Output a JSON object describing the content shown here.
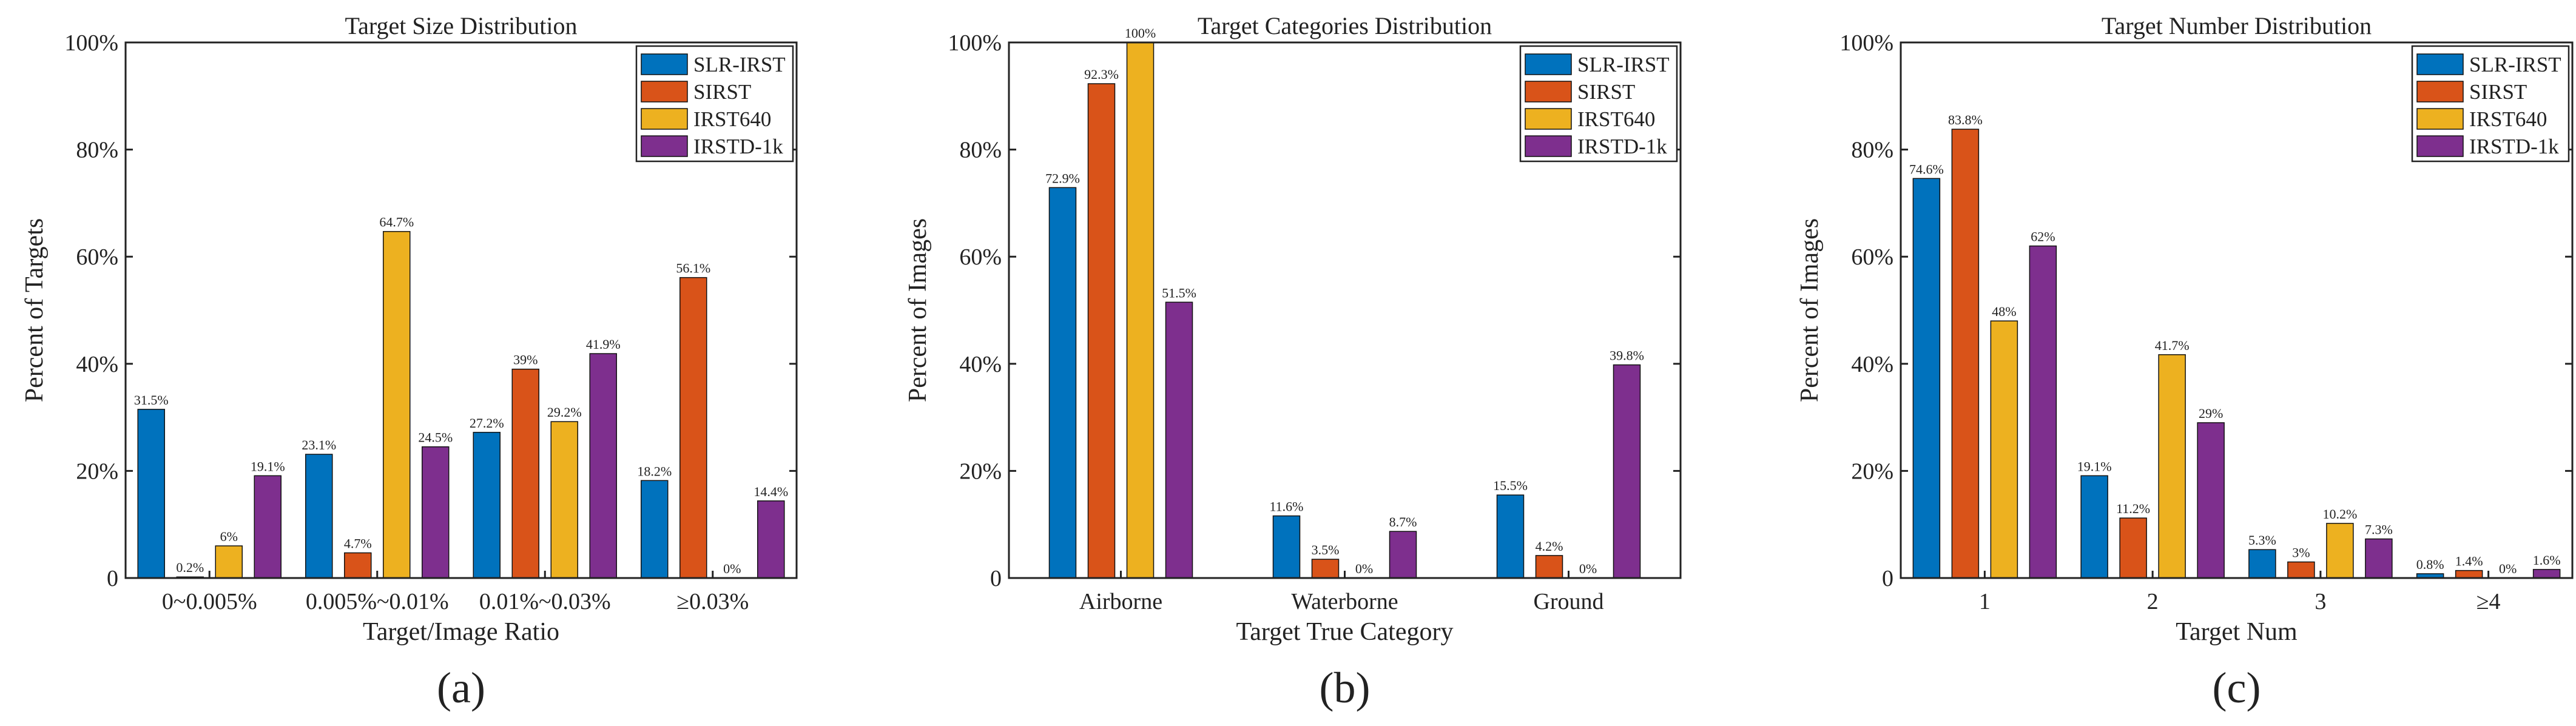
{
  "series_colors": [
    "#0072BD",
    "#D95319",
    "#EDB120",
    "#7E2F8E"
  ],
  "chart_data": [
    {
      "type": "bar",
      "panel_label": "(a)",
      "title": "Target Size Distribution",
      "xlabel": "Target/Image Ratio",
      "ylabel": "Percent of Targets",
      "ylim": [
        0,
        100
      ],
      "yticks": [
        "0",
        "20%",
        "40%",
        "60%",
        "80%",
        "100%"
      ],
      "grid": false,
      "legend_position": "top-right",
      "categories": [
        "0~0.005%",
        "0.005%~0.01%",
        "0.01%~0.03%",
        "≥0.03%"
      ],
      "series": [
        {
          "name": "SLR-IRST",
          "values": [
            31.5,
            23.1,
            27.2,
            18.2
          ],
          "labels": [
            "31.5%",
            "23.1%",
            "27.2%",
            "18.2%"
          ]
        },
        {
          "name": "SIRST",
          "values": [
            0.2,
            4.7,
            39,
            56.1
          ],
          "labels": [
            "0.2%",
            "4.7%",
            "39%",
            "56.1%"
          ]
        },
        {
          "name": "IRST640",
          "values": [
            6,
            64.7,
            29.2,
            0
          ],
          "labels": [
            "6%",
            "64.7%",
            "29.2%",
            "0%"
          ]
        },
        {
          "name": "IRSTD-1k",
          "values": [
            19.1,
            24.5,
            41.9,
            14.4
          ],
          "labels": [
            "19.1%",
            "24.5%",
            "41.9%",
            "14.4%"
          ]
        }
      ]
    },
    {
      "type": "bar",
      "panel_label": "(b)",
      "title": "Target Categories Distribution",
      "xlabel": "Target True Category",
      "ylabel": "Percent of Images",
      "ylim": [
        0,
        100
      ],
      "yticks": [
        "0",
        "20%",
        "40%",
        "60%",
        "80%",
        "100%"
      ],
      "grid": false,
      "legend_position": "top-right",
      "categories": [
        "Airborne",
        "Waterborne",
        "Ground"
      ],
      "series": [
        {
          "name": "SLR-IRST",
          "values": [
            72.9,
            11.6,
            15.5
          ],
          "labels": [
            "72.9%",
            "11.6%",
            "15.5%"
          ]
        },
        {
          "name": "SIRST",
          "values": [
            92.3,
            3.5,
            4.2
          ],
          "labels": [
            "92.3%",
            "3.5%",
            "4.2%"
          ]
        },
        {
          "name": "IRST640",
          "values": [
            100,
            0,
            0
          ],
          "labels": [
            "100%",
            "0%",
            "0%"
          ]
        },
        {
          "name": "IRSTD-1k",
          "values": [
            51.5,
            8.7,
            39.8
          ],
          "labels": [
            "51.5%",
            "8.7%",
            "39.8%"
          ]
        }
      ]
    },
    {
      "type": "bar",
      "panel_label": "(c)",
      "title": "Target Number Distribution",
      "xlabel": "Target Num",
      "ylabel": "Percent of Images",
      "ylim": [
        0,
        100
      ],
      "yticks": [
        "0",
        "20%",
        "40%",
        "60%",
        "80%",
        "100%"
      ],
      "grid": false,
      "legend_position": "top-right",
      "categories": [
        "1",
        "2",
        "3",
        "≥4"
      ],
      "series": [
        {
          "name": "SLR-IRST",
          "values": [
            74.6,
            19.1,
            5.3,
            0.8
          ],
          "labels": [
            "74.6%",
            "19.1%",
            "5.3%",
            "0.8%"
          ]
        },
        {
          "name": "SIRST",
          "values": [
            83.8,
            11.2,
            3,
            1.4
          ],
          "labels": [
            "83.8%",
            "11.2%",
            "3%",
            "1.4%"
          ]
        },
        {
          "name": "IRST640",
          "values": [
            48,
            41.7,
            10.2,
            0
          ],
          "labels": [
            "48%",
            "41.7%",
            "10.2%",
            "0%"
          ]
        },
        {
          "name": "IRSTD-1k",
          "values": [
            62,
            29,
            7.3,
            1.6
          ],
          "labels": [
            "62%",
            "29%",
            "7.3%",
            "1.6%"
          ]
        }
      ]
    }
  ]
}
